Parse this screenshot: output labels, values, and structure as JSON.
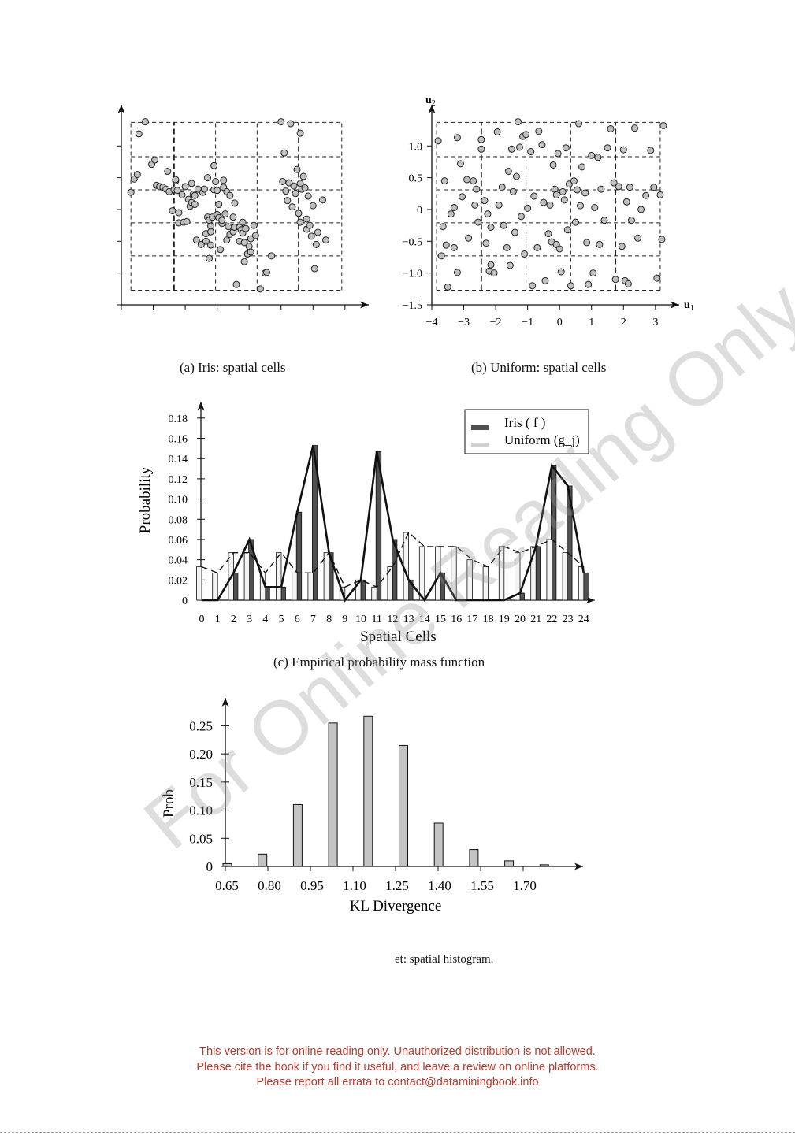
{
  "captions": {
    "a": "(a) Iris: spatial cells",
    "b": "(b) Uniform: spatial cells",
    "c": "(c) Empirical probability mass function",
    "d_partial": "et: spatial histogram."
  },
  "footer": {
    "line1": "This version is for online reading only. Unauthorized distribution is not allowed.",
    "line2": "Please cite the book if you find it useful, and leave a review on online platforms.",
    "line3": "Please report all errata to contact@dataminingbook.info"
  },
  "watermark": "For Online Reading Only",
  "colors": {
    "footer": "#c0392b",
    "iris_bar": "#505050",
    "uniform_bar": "#d0d0d0",
    "point": "#c0c0c0"
  },
  "chart_data": [
    {
      "id": "iris-scatter",
      "type": "scatter",
      "xlabel": "",
      "ylabel": "",
      "xlim": [
        -4,
        3.3
      ],
      "ylim": [
        -1.5,
        1.4
      ],
      "grid": "dashed-cells",
      "cell_x": [
        -3.7,
        -2.35,
        -1.05,
        0.25,
        1.55,
        2.9
      ],
      "cell_y": [
        -1.27,
        -0.73,
        -0.21,
        0.31,
        0.83,
        1.37
      ],
      "points": [
        [
          -3.7,
          0.27
        ],
        [
          -3.6,
          0.48
        ],
        [
          -3.5,
          0.55
        ],
        [
          -3.45,
          1.19
        ],
        [
          -3.25,
          1.38
        ],
        [
          -3.05,
          0.71
        ],
        [
          -2.95,
          0.78
        ],
        [
          -2.9,
          0.38
        ],
        [
          -2.8,
          0.36
        ],
        [
          -2.7,
          0.35
        ],
        [
          -2.6,
          0.32
        ],
        [
          -2.55,
          0.6
        ],
        [
          -2.5,
          0.28
        ],
        [
          -2.4,
          -0.02
        ],
        [
          -2.35,
          0.31
        ],
        [
          -2.3,
          0.45
        ],
        [
          -2.3,
          0.47
        ],
        [
          -2.25,
          0.3
        ],
        [
          -2.2,
          -0.05
        ],
        [
          -2.2,
          -0.21
        ],
        [
          -2.1,
          0.23
        ],
        [
          -2.05,
          -0.2
        ],
        [
          -2.0,
          0.36
        ],
        [
          -1.95,
          -0.19
        ],
        [
          -1.9,
          0.16
        ],
        [
          -1.85,
          0.05
        ],
        [
          -1.8,
          0.11
        ],
        [
          -1.8,
          0.41
        ],
        [
          -1.75,
          0.24
        ],
        [
          -1.7,
          0.08
        ],
        [
          -1.7,
          0.22
        ],
        [
          -1.65,
          -0.48
        ],
        [
          -1.6,
          0.32
        ],
        [
          -1.5,
          -0.55
        ],
        [
          -1.45,
          0.27
        ],
        [
          -1.4,
          0.32
        ],
        [
          -1.35,
          -0.5
        ],
        [
          -1.35,
          -0.38
        ],
        [
          -1.3,
          -0.12
        ],
        [
          -1.3,
          0.5
        ],
        [
          -1.25,
          -0.17
        ],
        [
          -1.25,
          -0.77
        ],
        [
          -1.2,
          -0.56
        ],
        [
          -1.2,
          -0.26
        ],
        [
          -1.2,
          -0.35
        ],
        [
          -1.15,
          -0.12
        ],
        [
          -1.1,
          0.69
        ],
        [
          -1.1,
          0.31
        ],
        [
          -1.05,
          0.44
        ],
        [
          -1.0,
          -0.08
        ],
        [
          -1.0,
          0.3
        ],
        [
          -0.95,
          0.08
        ],
        [
          -0.95,
          -0.13
        ],
        [
          -0.9,
          -0.63
        ],
        [
          -0.85,
          -0.22
        ],
        [
          -0.85,
          -0.17
        ],
        [
          -0.8,
          0.35
        ],
        [
          -0.8,
          0.46
        ],
        [
          -0.75,
          -0.07
        ],
        [
          -0.7,
          0.28
        ],
        [
          -0.7,
          -0.48
        ],
        [
          -0.65,
          -0.27
        ],
        [
          -0.6,
          0.22
        ],
        [
          -0.6,
          -0.39
        ],
        [
          -0.5,
          -0.35
        ],
        [
          -0.5,
          -0.12
        ],
        [
          -0.45,
          -0.28
        ],
        [
          -0.45,
          0.1
        ],
        [
          -0.4,
          -1.18
        ],
        [
          -0.3,
          -0.5
        ],
        [
          -0.3,
          -0.28
        ],
        [
          -0.25,
          -0.32
        ],
        [
          -0.2,
          -0.2
        ],
        [
          -0.2,
          -0.37
        ],
        [
          -0.15,
          -0.82
        ],
        [
          -0.15,
          -0.52
        ],
        [
          -0.1,
          -0.3
        ],
        [
          -0.05,
          -0.7
        ],
        [
          0.0,
          -0.58
        ],
        [
          0.05,
          -0.46
        ],
        [
          0.05,
          -0.67
        ],
        [
          0.15,
          -0.25
        ],
        [
          0.2,
          -0.41
        ],
        [
          0.35,
          -1.25
        ],
        [
          0.5,
          -1.0
        ],
        [
          0.55,
          -0.99
        ],
        [
          0.7,
          -0.73
        ],
        [
          1.0,
          1.38
        ],
        [
          1.05,
          0.44
        ],
        [
          1.1,
          0.89
        ],
        [
          1.15,
          0.29
        ],
        [
          1.2,
          0.14
        ],
        [
          1.25,
          0.42
        ],
        [
          1.3,
          1.35
        ],
        [
          1.35,
          0.04
        ],
        [
          1.4,
          0.37
        ],
        [
          1.45,
          0.25
        ],
        [
          1.5,
          0.63
        ],
        [
          1.55,
          -0.06
        ],
        [
          1.6,
          1.2
        ],
        [
          1.6,
          0.41
        ],
        [
          1.6,
          -0.2
        ],
        [
          1.65,
          0.32
        ],
        [
          1.7,
          0.52
        ],
        [
          1.75,
          0.34
        ],
        [
          1.8,
          -0.31
        ],
        [
          1.8,
          -0.15
        ],
        [
          1.85,
          0.21
        ],
        [
          1.9,
          -0.25
        ],
        [
          1.95,
          -0.42
        ],
        [
          2.0,
          0.06
        ],
        [
          2.05,
          -0.93
        ],
        [
          2.1,
          -0.55
        ],
        [
          2.15,
          -0.36
        ],
        [
          2.3,
          0.15
        ],
        [
          2.4,
          -0.48
        ]
      ]
    },
    {
      "id": "uniform-scatter",
      "type": "scatter",
      "xlabel": "u1",
      "ylabel": "u2",
      "xlim": [
        -4,
        3.3
      ],
      "ylim": [
        -1.5,
        1.4
      ],
      "xticks": [
        "−4",
        "−3",
        "−2",
        "−1",
        "0",
        "1",
        "2",
        "3"
      ],
      "yticks": [
        "−1.5",
        "−1.0",
        "−0.5",
        "0",
        "0.5",
        "1.0"
      ],
      "grid": "dashed-cells",
      "cell_x": [
        -3.85,
        -2.45,
        -1.05,
        0.35,
        1.75,
        3.15
      ],
      "cell_y": [
        -1.27,
        -0.73,
        -0.21,
        0.31,
        0.83,
        1.37
      ],
      "points": [
        [
          -3.8,
          1.08
        ],
        [
          -3.7,
          -0.73
        ],
        [
          -3.65,
          -0.27
        ],
        [
          -3.6,
          0.45
        ],
        [
          -3.55,
          -0.56
        ],
        [
          -3.5,
          -1.22
        ],
        [
          -3.4,
          -0.07
        ],
        [
          -3.3,
          -0.6
        ],
        [
          -3.3,
          0.03
        ],
        [
          -3.2,
          1.13
        ],
        [
          -3.2,
          -0.99
        ],
        [
          -3.1,
          0.72
        ],
        [
          -3.05,
          0.2
        ],
        [
          -2.9,
          0.47
        ],
        [
          -2.85,
          -0.45
        ],
        [
          -2.7,
          0.45
        ],
        [
          -2.65,
          0.07
        ],
        [
          -2.6,
          0.32
        ],
        [
          -2.55,
          -0.2
        ],
        [
          -2.45,
          1.1
        ],
        [
          -2.45,
          0.95
        ],
        [
          -2.35,
          0.14
        ],
        [
          -2.3,
          -0.53
        ],
        [
          -2.25,
          -0.07
        ],
        [
          -2.2,
          -0.97
        ],
        [
          -2.15,
          -0.87
        ],
        [
          -2.15,
          -0.28
        ],
        [
          -2.05,
          -1.0
        ],
        [
          -1.95,
          1.22
        ],
        [
          -1.9,
          0.07
        ],
        [
          -1.8,
          0.35
        ],
        [
          -1.75,
          -0.25
        ],
        [
          -1.65,
          -0.6
        ],
        [
          -1.6,
          0.6
        ],
        [
          -1.55,
          -0.88
        ],
        [
          -1.5,
          0.95
        ],
        [
          -1.45,
          0.28
        ],
        [
          -1.4,
          -0.36
        ],
        [
          -1.35,
          0.52
        ],
        [
          -1.3,
          1.38
        ],
        [
          -1.25,
          0.98
        ],
        [
          -1.2,
          -0.11
        ],
        [
          -1.15,
          1.15
        ],
        [
          -1.1,
          -0.7
        ],
        [
          -1.05,
          1.18
        ],
        [
          -1.0,
          0.02
        ],
        [
          -0.9,
          0.91
        ],
        [
          -0.85,
          -1.2
        ],
        [
          -0.8,
          0.21
        ],
        [
          -0.7,
          -0.6
        ],
        [
          -0.65,
          1.23
        ],
        [
          -0.55,
          1.02
        ],
        [
          -0.5,
          0.11
        ],
        [
          -0.45,
          -1.12
        ],
        [
          -0.35,
          -0.38
        ],
        [
          -0.3,
          0.07
        ],
        [
          -0.25,
          -0.51
        ],
        [
          -0.2,
          0.7
        ],
        [
          -0.15,
          0.32
        ],
        [
          -0.1,
          -0.55
        ],
        [
          -0.1,
          0.23
        ],
        [
          -0.05,
          0.88
        ],
        [
          0.0,
          -0.62
        ],
        [
          0.05,
          -0.98
        ],
        [
          0.1,
          0.28
        ],
        [
          0.15,
          0.15
        ],
        [
          0.2,
          0.97
        ],
        [
          0.25,
          -0.32
        ],
        [
          0.3,
          0.4
        ],
        [
          0.35,
          -1.2
        ],
        [
          0.45,
          0.45
        ],
        [
          0.5,
          -0.2
        ],
        [
          0.55,
          0.31
        ],
        [
          0.6,
          1.35
        ],
        [
          0.65,
          0.06
        ],
        [
          0.7,
          0.67
        ],
        [
          0.8,
          0.26
        ],
        [
          0.85,
          -0.52
        ],
        [
          0.9,
          -1.18
        ],
        [
          1.0,
          0.85
        ],
        [
          1.05,
          -1.0
        ],
        [
          1.1,
          0.03
        ],
        [
          1.2,
          0.82
        ],
        [
          1.25,
          -0.55
        ],
        [
          1.3,
          0.32
        ],
        [
          1.4,
          -0.17
        ],
        [
          1.5,
          0.97
        ],
        [
          1.6,
          1.27
        ],
        [
          1.7,
          0.42
        ],
        [
          1.75,
          -1.1
        ],
        [
          1.85,
          0.36
        ],
        [
          1.95,
          -0.58
        ],
        [
          2.0,
          0.94
        ],
        [
          2.05,
          -1.12
        ],
        [
          2.1,
          0.12
        ],
        [
          2.15,
          -1.17
        ],
        [
          2.2,
          0.35
        ],
        [
          2.25,
          -0.17
        ],
        [
          2.35,
          1.28
        ],
        [
          2.45,
          -0.45
        ],
        [
          2.55,
          0.0
        ],
        [
          2.7,
          0.22
        ],
        [
          2.85,
          0.93
        ],
        [
          2.95,
          0.35
        ],
        [
          3.05,
          -1.08
        ],
        [
          3.15,
          0.23
        ],
        [
          3.2,
          -0.47
        ],
        [
          3.25,
          1.32
        ]
      ]
    },
    {
      "id": "pmf",
      "type": "bar",
      "xlabel": "Spatial Cells",
      "ylabel": "Probability",
      "categories": [
        0,
        1,
        2,
        3,
        4,
        5,
        6,
        7,
        8,
        9,
        10,
        11,
        12,
        13,
        14,
        15,
        16,
        17,
        18,
        19,
        20,
        21,
        22,
        23,
        24
      ],
      "ylim": [
        0,
        0.19
      ],
      "yticks": [
        "0",
        "0.02",
        "0.04",
        "0.06",
        "0.08",
        "0.10",
        "0.12",
        "0.14",
        "0.16",
        "0.18"
      ],
      "legend": "top-right",
      "series": [
        {
          "name": "Iris ( f )",
          "style": "dark-bar-solid-line",
          "values": [
            0.0,
            0.0,
            0.027,
            0.06,
            0.013,
            0.013,
            0.087,
            0.153,
            0.047,
            0.0,
            0.02,
            0.147,
            0.06,
            0.02,
            0.0,
            0.027,
            0.0,
            0.0,
            0.0,
            0.0,
            0.007,
            0.053,
            0.133,
            0.113,
            0.027
          ]
        },
        {
          "name": "Uniform (g_j)",
          "style": "light-bar-dashed-line",
          "values": [
            0.033,
            0.027,
            0.047,
            0.047,
            0.027,
            0.047,
            0.027,
            0.027,
            0.047,
            0.013,
            0.02,
            0.013,
            0.033,
            0.067,
            0.053,
            0.053,
            0.053,
            0.04,
            0.033,
            0.053,
            0.047,
            0.053,
            0.06,
            0.047,
            0.033
          ]
        }
      ]
    },
    {
      "id": "kl-hist",
      "type": "bar",
      "xlabel": "KL Divergence",
      "ylabel": "Prob",
      "x": [
        0.65,
        0.8,
        0.925,
        1.05,
        1.175,
        1.3,
        1.425,
        1.55,
        1.675,
        1.8
      ],
      "values": [
        0.005,
        0.022,
        0.11,
        0.255,
        0.267,
        0.215,
        0.077,
        0.03,
        0.01,
        0.003
      ],
      "xticks": [
        "0.65",
        "0.80",
        "0.95",
        "1.10",
        "1.25",
        "1.40",
        "1.55",
        "1.70"
      ],
      "yticks": [
        "0",
        "0.05",
        "0.10",
        "0.15",
        "0.20",
        "0.25"
      ],
      "ylim": [
        0,
        0.28
      ]
    }
  ]
}
